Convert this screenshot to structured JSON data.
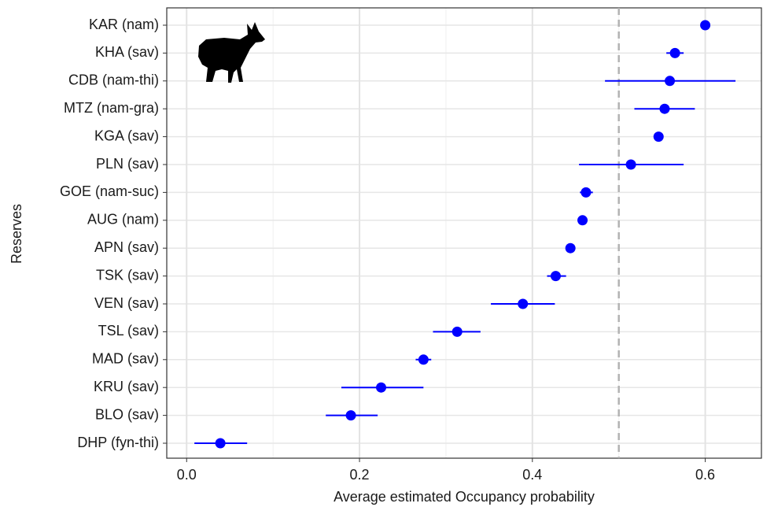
{
  "chart_data": {
    "type": "dot-errorbar",
    "x_label": "Average estimated Occupancy probability",
    "y_label": "Reserves",
    "categories": [
      "KAR (nam)",
      "KHA (sav)",
      "CDB (nam-thi)",
      "MTZ (nam-gra)",
      "KGA (sav)",
      "PLN (sav)",
      "GOE (nam-suc)",
      "AUG (nam)",
      "APN (sav)",
      "TSK (sav)",
      "VEN (sav)",
      "TSL (sav)",
      "MAD (sav)",
      "KRU (sav)",
      "BLO (sav)",
      "DHP (fyn-thi)"
    ],
    "values": [
      0.6,
      0.565,
      0.559,
      0.553,
      0.546,
      0.514,
      0.462,
      0.458,
      0.444,
      0.427,
      0.389,
      0.313,
      0.274,
      0.225,
      0.19,
      0.039
    ],
    "lower": [
      null,
      0.555,
      0.484,
      0.518,
      null,
      0.454,
      0.455,
      null,
      null,
      0.417,
      0.352,
      0.285,
      0.265,
      0.179,
      0.161,
      0.009
    ],
    "upper": [
      null,
      0.575,
      0.635,
      0.588,
      null,
      0.575,
      0.47,
      null,
      null,
      0.439,
      0.426,
      0.34,
      0.283,
      0.274,
      0.221,
      0.07
    ],
    "color": "#0000ff",
    "xlim": [
      -0.023,
      0.665
    ],
    "xticks": [
      {
        "value": 0,
        "label": "0.0"
      },
      0.2,
      0.4,
      0.6
    ],
    "xminor": [
      0.1,
      0.3,
      0.5
    ],
    "reference_line": 0.5,
    "grid": true
  }
}
